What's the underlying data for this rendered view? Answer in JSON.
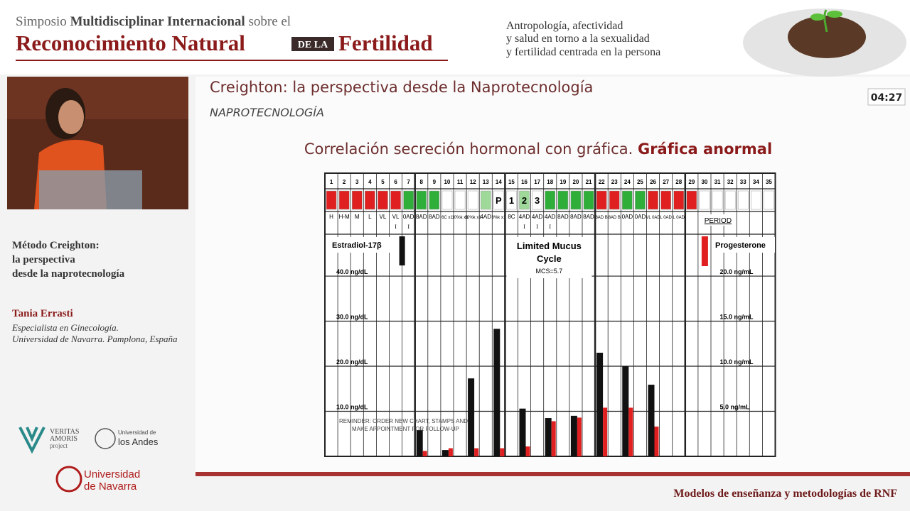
{
  "header": {
    "prefix": "Simposio",
    "bold": "Multidisciplinar Internacional",
    "suffix": "sobre el",
    "title_a": "Reconocimiento Natural",
    "badge": "DE LA",
    "title_b": "Fertilidad"
  },
  "tagline": [
    "Antropología, afectividad",
    "y salud en torno a la sexualidad",
    "y fertilidad centrada en la persona"
  ],
  "sidebar": {
    "talk": [
      "Método Creighton:",
      "la perspectiva",
      "desde la naprotecnología"
    ],
    "speaker": "Tania Errasti",
    "affiliation": [
      "Especialista en Ginecología.",
      "Universidad de Navarra. Pamplona, España"
    ]
  },
  "logos": {
    "veritas": [
      "VERITAS",
      "AMORIS",
      "project"
    ],
    "andes": [
      "Universidad de",
      "los Andes"
    ],
    "navarra": [
      "Universidad",
      "de Navarra"
    ]
  },
  "slide": {
    "title": "Creighton: la perspectiva desde la Naprotecnología",
    "subtitle": "NAPROTECNOLOGÍA",
    "timer": "04:27",
    "heading": "Correlación secreción hormonal con gráfica.",
    "heading_bold": "Gráfica anormal",
    "chart": {
      "days": [
        1,
        2,
        3,
        4,
        5,
        6,
        7,
        8,
        9,
        10,
        11,
        12,
        13,
        14,
        15,
        16,
        17,
        18,
        19,
        20,
        21,
        22,
        23,
        24,
        25,
        26,
        27,
        28,
        29,
        30,
        31,
        32,
        33,
        34,
        35
      ],
      "stamp_colors": [
        "#e02020",
        "#e02020",
        "#e02020",
        "#e02020",
        "#e02020",
        "#e02020",
        "#2fae3a",
        "#2fae3a",
        "#2fae3a",
        "#ffffff",
        "#ffffff",
        "#ffffff",
        "#9fd99a",
        "#ffffff",
        "#ffffff",
        "#9fd99a",
        "#ffffff",
        "#2fae3a",
        "#2fae3a",
        "#2fae3a",
        "#2fae3a",
        "#e02020",
        "#e02020",
        "#2fae3a",
        "#2fae3a",
        "#e02020",
        "#e02020",
        "#e02020",
        "#e02020",
        "#ffffff",
        "#ffffff",
        "#ffffff",
        "#ffffff",
        "#ffffff",
        "#ffffff"
      ],
      "stamp_text": [
        null,
        null,
        null,
        null,
        null,
        null,
        null,
        null,
        null,
        null,
        null,
        null,
        null,
        "P",
        "1",
        "2",
        "3",
        null,
        null,
        null,
        null,
        null,
        null,
        null,
        null,
        null,
        null,
        null,
        null,
        null,
        null,
        null,
        null,
        null,
        null
      ],
      "codes": [
        "H",
        "H-M",
        "M",
        "L",
        "VL",
        "VL",
        "0AD",
        "8AD",
        "8AD",
        "6C x1",
        "10%k x1",
        "10%k x1",
        "4AD",
        "8%k x1",
        "8C",
        "4AD",
        "4AD",
        "4AD",
        "8AD",
        "8AD",
        "8AD",
        "8AD B",
        "8AD B",
        "0AD",
        "0AD",
        "VL 0AD",
        "L 0AD",
        "L 0AD",
        null,
        null,
        null,
        null,
        null,
        null,
        null
      ],
      "roman": [
        null,
        null,
        null,
        null,
        null,
        "I",
        "I",
        null,
        null,
        null,
        null,
        null,
        null,
        null,
        null,
        "I",
        "I",
        "I",
        null,
        null,
        null,
        null,
        null,
        null,
        null,
        null,
        null,
        null,
        null,
        null,
        null,
        null,
        null,
        null,
        null
      ],
      "estradiol_label": "Estradiol-17β",
      "progesterone_label": "Progesterone",
      "cycle_label": [
        "Limited Mucus",
        "Cycle"
      ],
      "mcs": "MCS=5.7",
      "period": "PERIOD",
      "reminder": [
        "REMINDER: ORDER NEW CHART, STAMPS AND",
        "MAKE APPOINTMENT FOR FOLLOW-UP"
      ],
      "left_lim": [
        0,
        49.3
      ],
      "left_ticks": [
        {
          "value": 40,
          "label": "40.0 ng/dL"
        },
        {
          "value": 30,
          "label": "30.0 ng/dL"
        },
        {
          "value": 20,
          "label": "20.0 ng/dL"
        },
        {
          "value": 10,
          "label": "10.0 ng/dL"
        }
      ],
      "right_lim": [
        0,
        24.65
      ],
      "right_ticks": [
        {
          "value": 20,
          "label": "20.0 ng/mL"
        },
        {
          "value": 15,
          "label": "15.0 ng/mL"
        },
        {
          "value": 10,
          "label": "10.0 ng/mL"
        },
        {
          "value": 5,
          "label": "5.0 ng/mL"
        }
      ],
      "estradiol": {
        "color": "#111111",
        "days": [
          8,
          10,
          12,
          14,
          16,
          18,
          20,
          22,
          24,
          26
        ],
        "values": [
          5.8,
          1.4,
          17.3,
          28.3,
          10.6,
          8.5,
          9.0,
          23.0,
          20.0,
          15.9
        ]
      },
      "progesterone": {
        "color": "#e02020",
        "days": [
          8,
          10,
          12,
          14,
          16,
          18,
          20,
          22,
          24,
          26
        ],
        "values": [
          0.6,
          0.9,
          0.9,
          0.9,
          1.1,
          3.9,
          4.3,
          5.4,
          5.4,
          3.3
        ]
      }
    }
  },
  "footer": "Modelos de enseñanza y metodologías de RNF"
}
